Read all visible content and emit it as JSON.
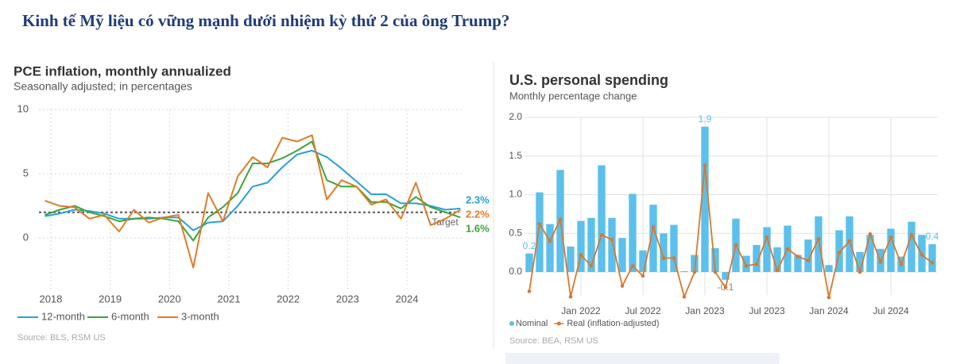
{
  "header": {
    "title": "Kinh tế Mỹ liệu có vững mạnh dưới nhiệm kỳ thứ 2 của ông Trump?"
  },
  "chart_data": [
    {
      "type": "line",
      "title": "PCE inflation, monthly annualized",
      "subtitle": "Seasonally adjusted; in percentages",
      "source": "Source: BLS, RSM US",
      "x": [
        2017.9,
        2018.15,
        2018.4,
        2018.65,
        2018.9,
        2019.15,
        2019.4,
        2019.65,
        2019.9,
        2020.15,
        2020.4,
        2020.65,
        2020.9,
        2021.15,
        2021.4,
        2021.65,
        2021.9,
        2022.15,
        2022.4,
        2022.65,
        2022.9,
        2023.15,
        2023.4,
        2023.65,
        2023.9,
        2024.15,
        2024.4,
        2024.65,
        2024.9
      ],
      "xlim": [
        2017.8,
        2024.95
      ],
      "xticks": [
        2018,
        2019,
        2020,
        2021,
        2022,
        2023,
        2024
      ],
      "ylim": [
        -4,
        10
      ],
      "yticks": [
        0,
        5,
        10
      ],
      "grid": true,
      "target": {
        "value": 2,
        "label": "Target"
      },
      "series": [
        {
          "name": "12-month",
          "color": "#2a9fd6",
          "end_label": "2.3%",
          "values": [
            1.7,
            1.9,
            2.2,
            2.1,
            1.9,
            1.5,
            1.5,
            1.5,
            1.6,
            1.6,
            0.6,
            1.2,
            1.3,
            2.5,
            4.0,
            4.3,
            5.5,
            6.5,
            6.8,
            6.3,
            5.4,
            4.4,
            3.4,
            3.4,
            2.7,
            2.7,
            2.5,
            2.2,
            2.3
          ]
        },
        {
          "name": "6-month",
          "color": "#3aa53a",
          "end_label": "1.6%",
          "values": [
            1.8,
            2.2,
            2.5,
            2.0,
            1.7,
            1.3,
            1.5,
            1.6,
            1.5,
            1.3,
            -0.2,
            1.6,
            2.4,
            3.5,
            5.8,
            5.8,
            6.2,
            6.8,
            7.5,
            4.5,
            4.0,
            4.0,
            2.8,
            2.8,
            2.3,
            3.2,
            2.4,
            2.0,
            1.6
          ]
        },
        {
          "name": "3-month",
          "color": "#e07b28",
          "end_label": "2.2%",
          "values": [
            2.9,
            2.5,
            2.4,
            1.5,
            1.8,
            0.5,
            2.2,
            1.2,
            1.6,
            1.8,
            -2.3,
            3.5,
            1.3,
            4.8,
            6.3,
            5.5,
            7.8,
            7.5,
            8.0,
            3.0,
            4.5,
            4.0,
            2.6,
            3.0,
            1.5,
            4.3,
            1.0,
            1.5,
            2.2
          ]
        }
      ]
    },
    {
      "type": "bar",
      "title": "U.S. personal spending",
      "subtitle": "Monthly percentage change",
      "source": "Source: BEA, RSM US",
      "categories": [
        null,
        null,
        null,
        null,
        null,
        "Jan 2022",
        null,
        null,
        null,
        null,
        null,
        "Jul 2022",
        null,
        null,
        null,
        null,
        null,
        "Jan 2023",
        null,
        null,
        null,
        null,
        null,
        "Jul 2023",
        null,
        null,
        null,
        null,
        null,
        "Jan 2024",
        null,
        null,
        null,
        null,
        null,
        "Jul 2024",
        null,
        null,
        null,
        null
      ],
      "ylim": [
        -0.3,
        2.0
      ],
      "yticks": [
        {
          "value": 0,
          "label": "0.0"
        },
        0.5,
        {
          "value": 1,
          "label": "1.0"
        },
        1.5,
        {
          "value": 2,
          "label": "2.0"
        }
      ],
      "grid": true,
      "series": [
        {
          "name": "Nominal",
          "color": "#5bc0eb",
          "type": "bar",
          "values": [
            0.24,
            1.03,
            0.62,
            1.32,
            0.33,
            0.66,
            0.7,
            1.38,
            0.7,
            0.44,
            1.01,
            0.28,
            0.87,
            0.5,
            0.61,
            0.01,
            0.22,
            1.88,
            0.31,
            -0.1,
            0.69,
            0.21,
            0.35,
            0.58,
            0.32,
            0.6,
            0.22,
            0.42,
            0.72,
            0.09,
            0.54,
            0.72,
            0.26,
            0.48,
            0.3,
            0.56,
            0.2,
            0.65,
            0.48,
            0.36
          ],
          "value_labels": [
            "0.2",
            null,
            null,
            null,
            null,
            null,
            null,
            null,
            null,
            null,
            null,
            null,
            null,
            null,
            null,
            null,
            null,
            "1.9",
            null,
            "-0.1",
            null,
            null,
            null,
            null,
            null,
            null,
            null,
            null,
            null,
            null,
            null,
            null,
            null,
            null,
            null,
            null,
            null,
            null,
            null,
            "0.4"
          ]
        },
        {
          "name": "Real (inflation-adjusted)",
          "color": "#d9782d",
          "type": "line",
          "values": [
            -0.25,
            0.62,
            0.4,
            0.68,
            -0.32,
            0.22,
            0.08,
            0.48,
            0.42,
            -0.18,
            0.08,
            -0.05,
            0.58,
            0.18,
            0.18,
            -0.32,
            0.0,
            1.38,
            0.0,
            -0.2,
            0.35,
            0.08,
            0.1,
            0.45,
            0.02,
            0.3,
            0.2,
            0.15,
            0.43,
            -0.33,
            0.25,
            0.4,
            0.0,
            0.49,
            0.13,
            0.45,
            0.1,
            0.48,
            0.22,
            0.12
          ]
        }
      ]
    }
  ]
}
